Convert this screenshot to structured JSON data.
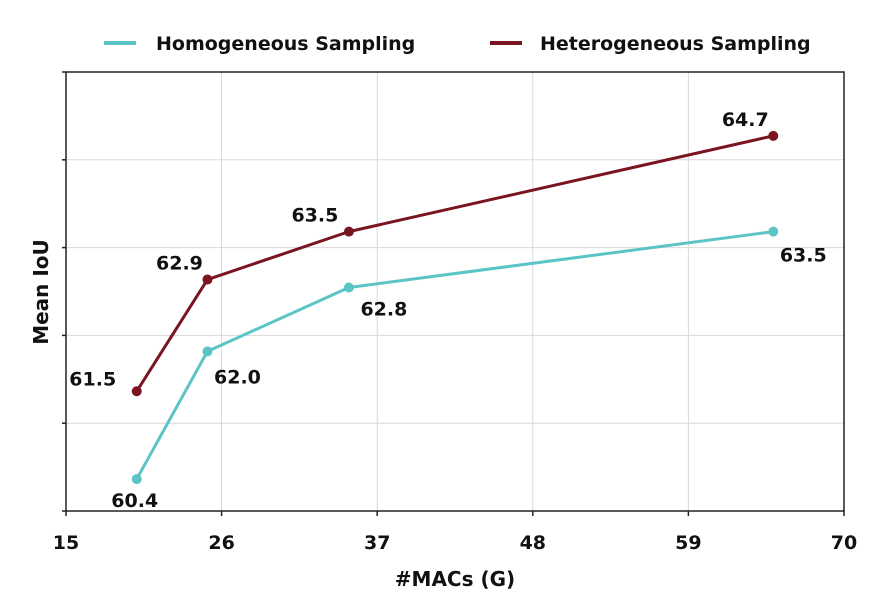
{
  "chart_data": {
    "type": "line",
    "title": "",
    "xlabel": "#MACs (G)",
    "ylabel": "Mean IoU",
    "xlim": [
      15,
      70
    ],
    "ylim": [
      60.0,
      65.5
    ],
    "x_ticks": [
      "15",
      "26",
      "37",
      "48",
      "59",
      "70"
    ],
    "grid": true,
    "legend_position": "top",
    "series": [
      {
        "name": "Homogeneous Sampling",
        "color": "#5bc4c4",
        "points": [
          {
            "x": 20.0,
            "y": 60.4,
            "label": "60.4"
          },
          {
            "x": 25.0,
            "y": 62.0,
            "label": "62.0"
          },
          {
            "x": 35.0,
            "y": 62.8,
            "label": "62.8"
          },
          {
            "x": 65.0,
            "y": 63.5,
            "label": "63.5"
          }
        ]
      },
      {
        "name": "Heterogeneous Sampling",
        "color": "#7a1420",
        "points": [
          {
            "x": 20.0,
            "y": 61.5,
            "label": "61.5"
          },
          {
            "x": 25.0,
            "y": 62.9,
            "label": "62.9"
          },
          {
            "x": 35.0,
            "y": 63.5,
            "label": "63.5"
          },
          {
            "x": 65.0,
            "y": 64.7,
            "label": "64.7"
          }
        ]
      }
    ]
  }
}
